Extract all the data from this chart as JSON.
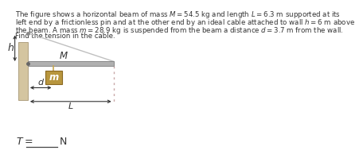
{
  "wall_color": "#d4c5a0",
  "wall_edge_color": "#b0a080",
  "beam_color": "#b0b0b0",
  "beam_edge_color": "#888888",
  "mass_color": "#b8963e",
  "mass_edge_color": "#8a6820",
  "cable_color": "#c0c0c0",
  "string_color": "#c8a850",
  "dotted_color": "#c8a8a8",
  "arrow_color": "#333333",
  "text_color": "#333333",
  "text_lines": [
    "The figure shows a horizontal beam of mass $M = 54.5$ kg and length $L = 6.3$ m supported at its",
    "left end by a frictionless pin and at the other end by an ideal cable attached to wall $h = 6$ m above",
    "the beam. A mass $m = 28.9$ kg is suspended from the beam a distance $d = 3.7$ m from the wall.",
    "Find the tension in the cable."
  ],
  "label_h": "h",
  "label_M": "M",
  "label_m": "m",
  "label_d": "d",
  "label_L": "L",
  "answer_prefix": "T =",
  "answer_suffix": "N"
}
